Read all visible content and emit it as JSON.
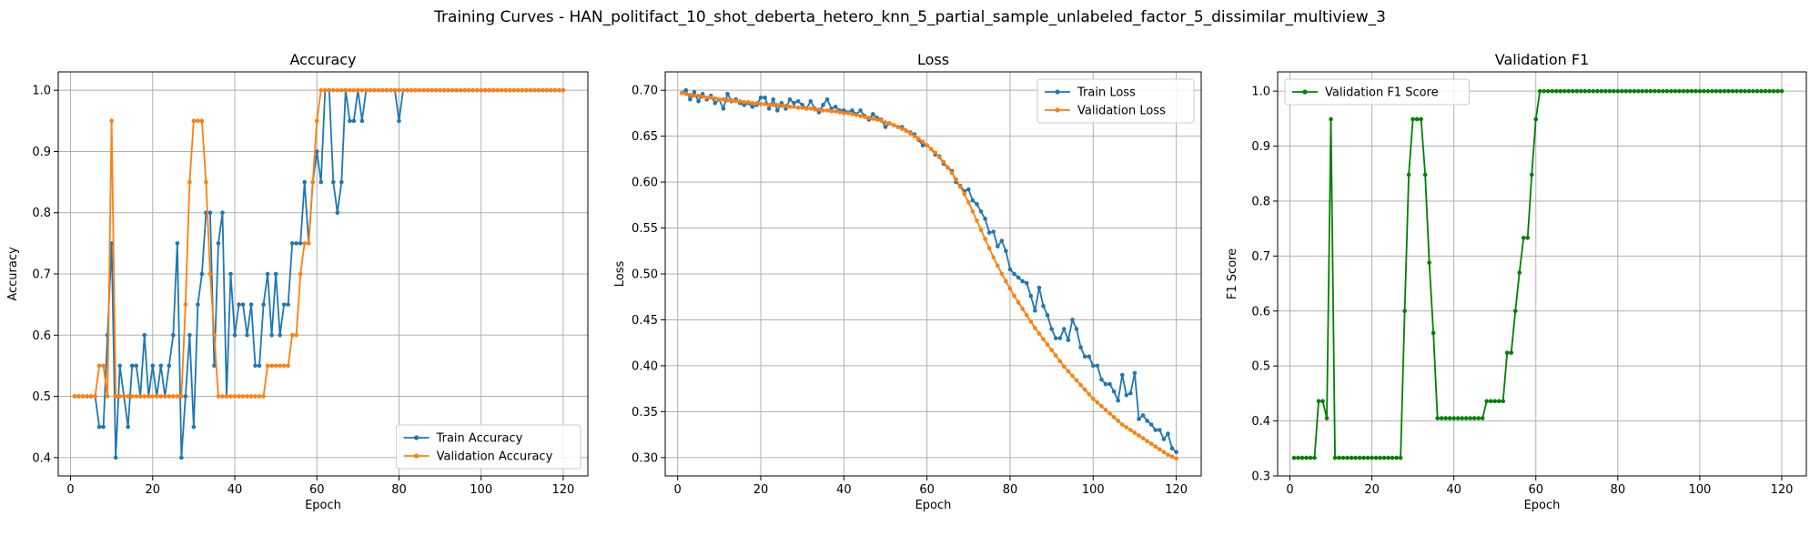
{
  "suptitle": "Training Curves - HAN_politifact_10_shot_deberta_hetero_knn_5_partial_sample_unlabeled_factor_5_dissimilar_multiview_3",
  "colors": {
    "train": "#1f77b4",
    "validation": "#ff7f0e",
    "f1": "#008000",
    "grid": "#b0b0b0"
  },
  "chart_data": [
    {
      "type": "line",
      "title": "Accuracy",
      "xlabel": "Epoch",
      "ylabel": "Accuracy",
      "xlim": [
        -3,
        126
      ],
      "ylim": [
        0.37,
        1.03
      ],
      "xticks": [
        0,
        20,
        40,
        60,
        80,
        100,
        120
      ],
      "xtick_labels": [
        "0",
        "20",
        "40",
        "60",
        "80",
        "100",
        "120"
      ],
      "yticks": [
        0.4,
        0.5,
        0.6,
        0.7,
        0.8,
        0.9,
        1.0
      ],
      "ytick_labels": [
        "0.4",
        "0.5",
        "0.6",
        "0.7",
        "0.8",
        "0.9",
        "1.0"
      ],
      "grid": true,
      "legend_position": "lower-right",
      "x_start": 1,
      "series": [
        {
          "name": "Train Accuracy",
          "color": "#1f77b4",
          "values": [
            0.5,
            0.5,
            0.5,
            0.5,
            0.5,
            0.5,
            0.45,
            0.45,
            0.6,
            0.75,
            0.4,
            0.55,
            0.5,
            0.45,
            0.55,
            0.55,
            0.5,
            0.6,
            0.5,
            0.55,
            0.5,
            0.55,
            0.5,
            0.55,
            0.6,
            0.75,
            0.4,
            0.5,
            0.6,
            0.45,
            0.65,
            0.7,
            0.8,
            0.8,
            0.55,
            0.75,
            0.8,
            0.5,
            0.7,
            0.6,
            0.65,
            0.65,
            0.6,
            0.65,
            0.55,
            0.55,
            0.65,
            0.7,
            0.6,
            0.7,
            0.6,
            0.65,
            0.65,
            0.75,
            0.75,
            0.75,
            0.85,
            0.75,
            0.85,
            0.9,
            0.85,
            1.0,
            1.0,
            0.85,
            0.8,
            0.85,
            1.0,
            0.95,
            0.95,
            1.0,
            0.95,
            1.0,
            1.0,
            1.0,
            1.0,
            1.0,
            1.0,
            1.0,
            1.0,
            0.95,
            1.0,
            1.0,
            1.0,
            1.0,
            1.0,
            1.0,
            1.0,
            1.0,
            1.0,
            1.0,
            1.0,
            1.0,
            1.0,
            1.0,
            1.0,
            1.0,
            1.0,
            1.0,
            1.0,
            1.0,
            1.0,
            1.0,
            1.0,
            1.0,
            1.0,
            1.0,
            1.0,
            1.0,
            1.0,
            1.0,
            1.0,
            1.0,
            1.0,
            1.0,
            1.0,
            1.0,
            1.0,
            1.0,
            1.0,
            1.0
          ]
        },
        {
          "name": "Validation Accuracy",
          "color": "#ff7f0e",
          "values": [
            0.5,
            0.5,
            0.5,
            0.5,
            0.5,
            0.5,
            0.55,
            0.55,
            0.5,
            0.95,
            0.5,
            0.5,
            0.5,
            0.5,
            0.5,
            0.5,
            0.5,
            0.5,
            0.5,
            0.5,
            0.5,
            0.5,
            0.5,
            0.5,
            0.5,
            0.5,
            0.5,
            0.65,
            0.85,
            0.95,
            0.95,
            0.95,
            0.85,
            0.7,
            0.6,
            0.5,
            0.5,
            0.5,
            0.5,
            0.5,
            0.5,
            0.5,
            0.5,
            0.5,
            0.5,
            0.5,
            0.5,
            0.55,
            0.55,
            0.55,
            0.55,
            0.55,
            0.55,
            0.6,
            0.6,
            0.7,
            0.75,
            0.75,
            0.85,
            0.95,
            1.0,
            1.0,
            1.0,
            1.0,
            1.0,
            1.0,
            1.0,
            1.0,
            1.0,
            1.0,
            1.0,
            1.0,
            1.0,
            1.0,
            1.0,
            1.0,
            1.0,
            1.0,
            1.0,
            1.0,
            1.0,
            1.0,
            1.0,
            1.0,
            1.0,
            1.0,
            1.0,
            1.0,
            1.0,
            1.0,
            1.0,
            1.0,
            1.0,
            1.0,
            1.0,
            1.0,
            1.0,
            1.0,
            1.0,
            1.0,
            1.0,
            1.0,
            1.0,
            1.0,
            1.0,
            1.0,
            1.0,
            1.0,
            1.0,
            1.0,
            1.0,
            1.0,
            1.0,
            1.0,
            1.0,
            1.0,
            1.0,
            1.0,
            1.0,
            1.0
          ]
        }
      ]
    },
    {
      "type": "line",
      "title": "Loss",
      "xlabel": "Epoch",
      "ylabel": "Loss",
      "xlim": [
        -3,
        126
      ],
      "ylim": [
        0.28,
        0.72
      ],
      "xticks": [
        0,
        20,
        40,
        60,
        80,
        100,
        120
      ],
      "xtick_labels": [
        "0",
        "20",
        "40",
        "60",
        "80",
        "100",
        "120"
      ],
      "yticks": [
        0.3,
        0.35,
        0.4,
        0.45,
        0.5,
        0.55,
        0.6,
        0.65,
        0.7
      ],
      "ytick_labels": [
        "0.30",
        "0.35",
        "0.40",
        "0.45",
        "0.50",
        "0.55",
        "0.60",
        "0.65",
        "0.70"
      ],
      "grid": true,
      "legend_position": "upper-right",
      "x_start": 1,
      "series": [
        {
          "name": "Train Loss",
          "color": "#1f77b4",
          "values": [
            0.697,
            0.7,
            0.69,
            0.698,
            0.688,
            0.696,
            0.69,
            0.694,
            0.686,
            0.69,
            0.68,
            0.696,
            0.688,
            0.69,
            0.686,
            0.684,
            0.686,
            0.682,
            0.684,
            0.692,
            0.692,
            0.68,
            0.69,
            0.678,
            0.686,
            0.68,
            0.69,
            0.686,
            0.688,
            0.684,
            0.68,
            0.688,
            0.68,
            0.676,
            0.684,
            0.69,
            0.68,
            0.682,
            0.678,
            0.678,
            0.676,
            0.678,
            0.674,
            0.678,
            0.672,
            0.668,
            0.674,
            0.67,
            0.668,
            0.66,
            0.664,
            0.662,
            0.66,
            0.66,
            0.656,
            0.654,
            0.652,
            0.646,
            0.64,
            0.64,
            0.636,
            0.63,
            0.628,
            0.62,
            0.616,
            0.612,
            0.6,
            0.596,
            0.59,
            0.592,
            0.58,
            0.576,
            0.568,
            0.56,
            0.545,
            0.546,
            0.53,
            0.536,
            0.525,
            0.505,
            0.5,
            0.496,
            0.492,
            0.49,
            0.476,
            0.46,
            0.485,
            0.465,
            0.455,
            0.44,
            0.43,
            0.43,
            0.44,
            0.428,
            0.45,
            0.44,
            0.42,
            0.41,
            0.41,
            0.4,
            0.4,
            0.385,
            0.38,
            0.38,
            0.372,
            0.362,
            0.39,
            0.368,
            0.37,
            0.392,
            0.342,
            0.346,
            0.34,
            0.336,
            0.33,
            0.33,
            0.32,
            0.326,
            0.31,
            0.306
          ]
        },
        {
          "name": "Validation Loss",
          "color": "#ff7f0e",
          "values": [
            0.697,
            0.696,
            0.695,
            0.694,
            0.694,
            0.693,
            0.692,
            0.692,
            0.691,
            0.69,
            0.69,
            0.689,
            0.689,
            0.688,
            0.688,
            0.687,
            0.687,
            0.686,
            0.686,
            0.685,
            0.685,
            0.684,
            0.684,
            0.684,
            0.683,
            0.683,
            0.682,
            0.682,
            0.681,
            0.681,
            0.68,
            0.68,
            0.679,
            0.679,
            0.678,
            0.678,
            0.677,
            0.677,
            0.676,
            0.675,
            0.675,
            0.674,
            0.673,
            0.672,
            0.671,
            0.67,
            0.669,
            0.668,
            0.667,
            0.665,
            0.664,
            0.662,
            0.66,
            0.658,
            0.656,
            0.653,
            0.65,
            0.647,
            0.644,
            0.64,
            0.636,
            0.632,
            0.627,
            0.622,
            0.616,
            0.61,
            0.603,
            0.595,
            0.587,
            0.578,
            0.568,
            0.558,
            0.548,
            0.538,
            0.528,
            0.518,
            0.509,
            0.5,
            0.492,
            0.484,
            0.476,
            0.469,
            0.462,
            0.455,
            0.448,
            0.441,
            0.435,
            0.429,
            0.423,
            0.417,
            0.411,
            0.405,
            0.399,
            0.394,
            0.389,
            0.384,
            0.379,
            0.374,
            0.369,
            0.364,
            0.36,
            0.356,
            0.352,
            0.348,
            0.344,
            0.34,
            0.336,
            0.333,
            0.33,
            0.327,
            0.324,
            0.321,
            0.318,
            0.315,
            0.312,
            0.309,
            0.306,
            0.303,
            0.301,
            0.299
          ]
        }
      ]
    },
    {
      "type": "line",
      "title": "Validation F1",
      "xlabel": "Epoch",
      "ylabel": "F1 Score",
      "xlim": [
        -3,
        126
      ],
      "ylim": [
        0.3,
        1.035
      ],
      "xticks": [
        0,
        20,
        40,
        60,
        80,
        100,
        120
      ],
      "xtick_labels": [
        "0",
        "20",
        "40",
        "60",
        "80",
        "100",
        "120"
      ],
      "yticks": [
        0.3,
        0.4,
        0.5,
        0.6,
        0.7,
        0.8,
        0.9,
        1.0
      ],
      "ytick_labels": [
        "0.3",
        "0.4",
        "0.5",
        "0.6",
        "0.7",
        "0.8",
        "0.9",
        "1.0"
      ],
      "grid": true,
      "legend_position": "upper-left",
      "x_start": 1,
      "series": [
        {
          "name": "Validation F1 Score",
          "color": "#008000",
          "values": [
            0.333,
            0.333,
            0.333,
            0.333,
            0.333,
            0.333,
            0.436,
            0.436,
            0.405,
            0.949,
            0.333,
            0.333,
            0.333,
            0.333,
            0.333,
            0.333,
            0.333,
            0.333,
            0.333,
            0.333,
            0.333,
            0.333,
            0.333,
            0.333,
            0.333,
            0.333,
            0.333,
            0.6,
            0.848,
            0.949,
            0.949,
            0.949,
            0.848,
            0.688,
            0.56,
            0.405,
            0.405,
            0.405,
            0.405,
            0.405,
            0.405,
            0.405,
            0.405,
            0.405,
            0.405,
            0.405,
            0.405,
            0.436,
            0.436,
            0.436,
            0.436,
            0.436,
            0.524,
            0.524,
            0.6,
            0.67,
            0.733,
            0.733,
            0.848,
            0.949,
            1.0,
            1.0,
            1.0,
            1.0,
            1.0,
            1.0,
            1.0,
            1.0,
            1.0,
            1.0,
            1.0,
            1.0,
            1.0,
            1.0,
            1.0,
            1.0,
            1.0,
            1.0,
            1.0,
            1.0,
            1.0,
            1.0,
            1.0,
            1.0,
            1.0,
            1.0,
            1.0,
            1.0,
            1.0,
            1.0,
            1.0,
            1.0,
            1.0,
            1.0,
            1.0,
            1.0,
            1.0,
            1.0,
            1.0,
            1.0,
            1.0,
            1.0,
            1.0,
            1.0,
            1.0,
            1.0,
            1.0,
            1.0,
            1.0,
            1.0,
            1.0,
            1.0,
            1.0,
            1.0,
            1.0,
            1.0,
            1.0,
            1.0,
            1.0,
            1.0
          ]
        }
      ]
    }
  ]
}
